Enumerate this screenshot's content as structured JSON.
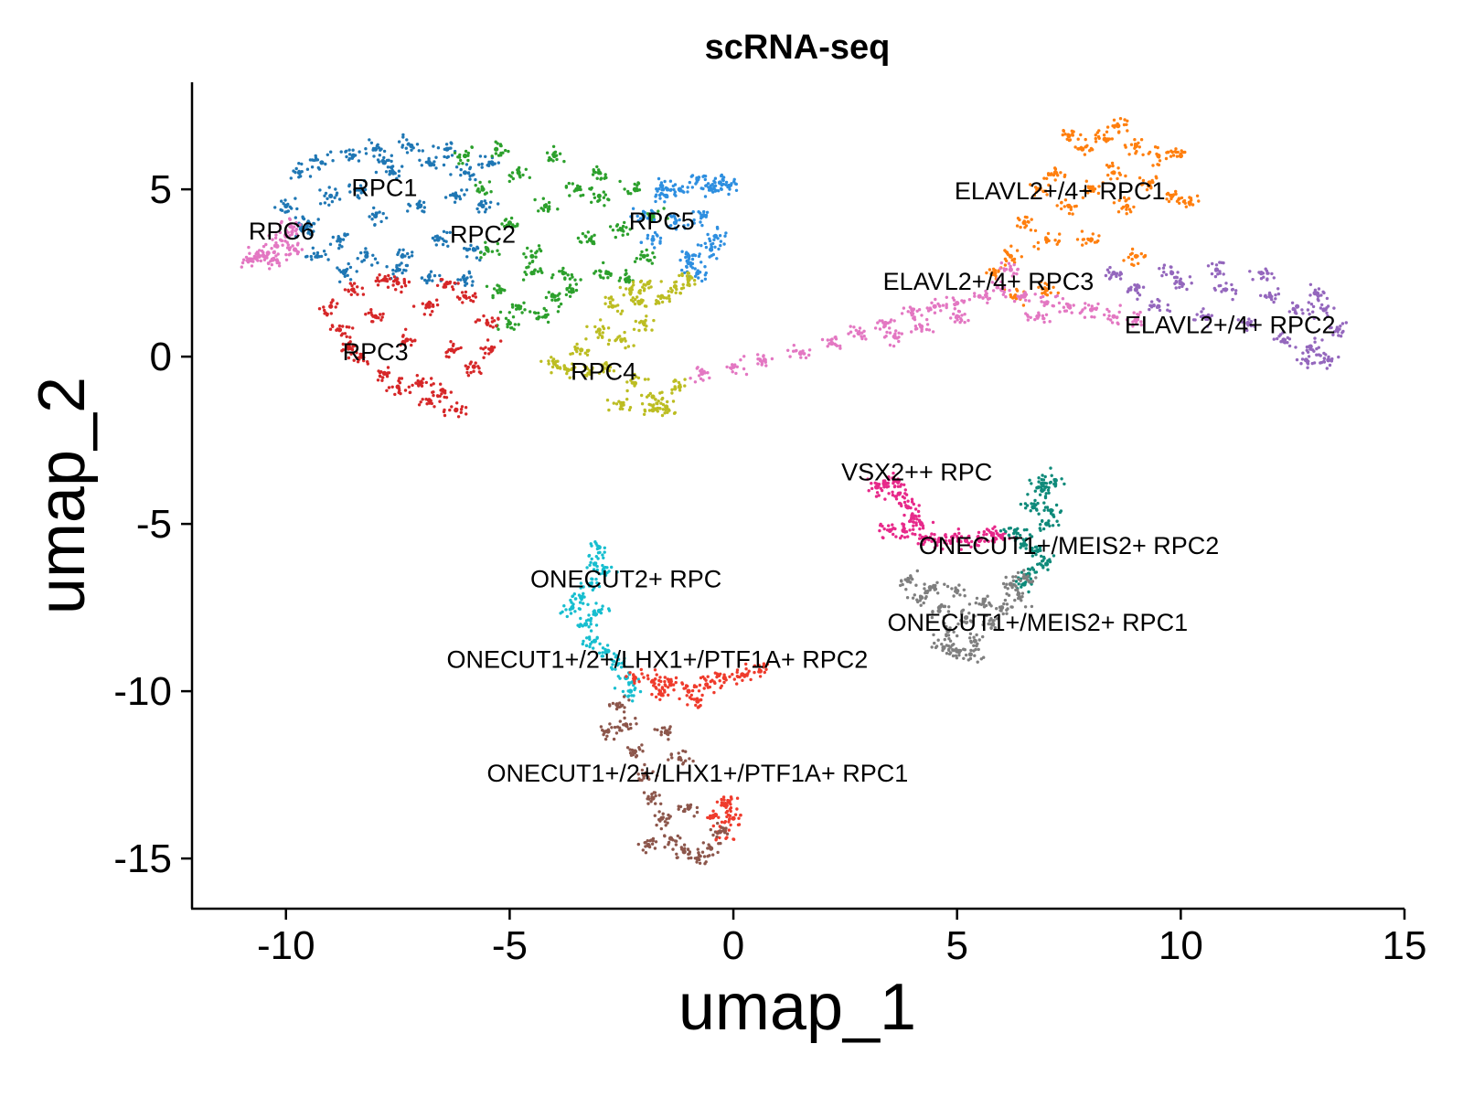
{
  "chart_data": {
    "type": "scatter",
    "title": "scRNA-seq",
    "xlabel": "umap_1",
    "ylabel": "umap_2",
    "xlim": [
      -12.1,
      15
    ],
    "ylim": [
      -16.5,
      8.2
    ],
    "xticks": [
      -10,
      -5,
      0,
      5,
      10,
      15
    ],
    "yticks": [
      -15,
      -10,
      -5,
      0,
      5
    ],
    "grid": false,
    "legend": "none",
    "series": [
      {
        "label": "RPC1",
        "color": "#1f77b4",
        "label_pos": [
          -7.8,
          4.8
        ],
        "points": [
          [
            -10.0,
            4.5
          ],
          [
            -9.7,
            5.5
          ],
          [
            -9.5,
            4.0
          ],
          [
            -9.2,
            5.8
          ],
          [
            -9.0,
            4.8
          ],
          [
            -8.8,
            3.5
          ],
          [
            -8.5,
            6.0
          ],
          [
            -8.3,
            5.0
          ],
          [
            -8.0,
            4.2
          ],
          [
            -8.0,
            6.2
          ],
          [
            -7.6,
            5.5
          ],
          [
            -7.4,
            3.0
          ],
          [
            -7.2,
            6.3
          ],
          [
            -7.0,
            4.5
          ],
          [
            -6.8,
            5.8
          ],
          [
            -6.6,
            3.5
          ],
          [
            -6.4,
            6.2
          ],
          [
            -6.2,
            4.8
          ],
          [
            -6.0,
            5.5
          ],
          [
            -5.8,
            3.2
          ],
          [
            -9.3,
            3.0
          ],
          [
            -8.7,
            2.5
          ],
          [
            -8.2,
            3.0
          ],
          [
            -7.5,
            2.6
          ],
          [
            -6.8,
            2.4
          ],
          [
            -6.0,
            2.3
          ],
          [
            -5.6,
            4.5
          ],
          [
            -5.4,
            5.8
          ],
          [
            -9.6,
            3.8
          ],
          [
            -7.8,
            5.8
          ]
        ]
      },
      {
        "label": "RPC2",
        "color": "#2ca02c",
        "label_pos": [
          -5.6,
          3.4
        ],
        "points": [
          [
            -6.0,
            6.0
          ],
          [
            -5.6,
            5.0
          ],
          [
            -5.3,
            6.2
          ],
          [
            -5.0,
            4.0
          ],
          [
            -4.8,
            5.5
          ],
          [
            -4.5,
            3.0
          ],
          [
            -4.2,
            4.5
          ],
          [
            -4.0,
            6.0
          ],
          [
            -3.8,
            2.5
          ],
          [
            -3.5,
            5.0
          ],
          [
            -3.2,
            3.5
          ],
          [
            -3.0,
            4.8
          ],
          [
            -2.8,
            2.5
          ],
          [
            -2.5,
            3.8
          ],
          [
            -2.2,
            5.0
          ],
          [
            -2.0,
            3.0
          ],
          [
            -1.8,
            4.2
          ],
          [
            -5.2,
            2.0
          ],
          [
            -4.8,
            1.5
          ],
          [
            -4.5,
            2.5
          ],
          [
            -4.0,
            1.8
          ],
          [
            -3.6,
            2.0
          ],
          [
            -5.5,
            3.2
          ],
          [
            -3.0,
            5.5
          ],
          [
            -2.4,
            2.3
          ],
          [
            -5.0,
            1.0
          ],
          [
            -4.2,
            1.2
          ]
        ]
      },
      {
        "label": "RPC5",
        "color": "#2e8fe0",
        "label_pos": [
          -1.6,
          3.8
        ],
        "points": [
          [
            -2.0,
            4.2
          ],
          [
            -1.8,
            3.5
          ],
          [
            -1.5,
            4.8
          ],
          [
            -1.3,
            4.0
          ],
          [
            -1.2,
            5.0
          ],
          [
            -1.0,
            3.0
          ],
          [
            -0.8,
            5.3
          ],
          [
            -0.7,
            4.2
          ],
          [
            -0.5,
            5.0
          ],
          [
            -0.3,
            5.2
          ],
          [
            -0.5,
            3.2
          ],
          [
            -0.8,
            2.5
          ],
          [
            -1.0,
            2.8
          ],
          [
            -0.4,
            3.6
          ],
          [
            -1.6,
            5.1
          ],
          [
            -0.1,
            5.1
          ]
        ]
      },
      {
        "label": "RPC6",
        "color": "#e377c2",
        "label_pos": [
          -10.1,
          3.5
        ],
        "points": [
          [
            -10.8,
            2.9
          ],
          [
            -10.6,
            3.0
          ],
          [
            -10.4,
            3.1
          ],
          [
            -10.2,
            3.3
          ],
          [
            -10.0,
            3.6
          ],
          [
            -9.9,
            3.9
          ],
          [
            -10.3,
            2.9
          ],
          [
            -9.8,
            3.2
          ]
        ]
      },
      {
        "label": "RPC3",
        "color": "#d62728",
        "label_pos": [
          -8.0,
          -0.1
        ],
        "points": [
          [
            -9.0,
            1.5
          ],
          [
            -8.8,
            0.8
          ],
          [
            -8.5,
            2.0
          ],
          [
            -8.3,
            0.0
          ],
          [
            -8.0,
            1.2
          ],
          [
            -7.8,
            -0.5
          ],
          [
            -7.5,
            2.2
          ],
          [
            -7.3,
            0.5
          ],
          [
            -7.0,
            -0.8
          ],
          [
            -6.8,
            1.5
          ],
          [
            -6.5,
            -1.0
          ],
          [
            -6.3,
            0.2
          ],
          [
            -6.0,
            1.8
          ],
          [
            -5.8,
            -0.3
          ],
          [
            -5.5,
            1.0
          ],
          [
            -6.2,
            -1.6
          ],
          [
            -6.8,
            -1.3
          ],
          [
            -7.5,
            -0.9
          ],
          [
            -8.6,
            0.3
          ],
          [
            -5.4,
            0.2
          ],
          [
            -6.4,
            2.2
          ],
          [
            -7.8,
            2.3
          ]
        ]
      },
      {
        "label": "RPC4",
        "color": "#bcbd22",
        "label_pos": [
          -2.9,
          -0.7
        ],
        "points": [
          [
            -4.0,
            -0.2
          ],
          [
            -3.7,
            -0.4
          ],
          [
            -3.4,
            0.2
          ],
          [
            -3.2,
            -0.5
          ],
          [
            -3.0,
            0.8
          ],
          [
            -2.8,
            -0.3
          ],
          [
            -2.7,
            1.5
          ],
          [
            -2.5,
            0.5
          ],
          [
            -2.3,
            2.0
          ],
          [
            -2.2,
            -0.8
          ],
          [
            -2.0,
            1.0
          ],
          [
            -1.9,
            2.2
          ],
          [
            -1.8,
            -1.2
          ],
          [
            -1.6,
            1.8
          ],
          [
            -1.5,
            -1.5
          ],
          [
            -1.3,
            2.1
          ],
          [
            -1.2,
            -0.9
          ],
          [
            -1.8,
            -1.6
          ],
          [
            -2.5,
            -1.4
          ],
          [
            -1.0,
            2.3
          ],
          [
            -2.1,
            1.6
          ]
        ]
      },
      {
        "label": "ELAVL2+/4+ RPC1",
        "color": "#ff7f0e",
        "label_pos": [
          7.3,
          4.7
        ],
        "points": [
          [
            5.8,
            2.5
          ],
          [
            6.2,
            3.0
          ],
          [
            6.5,
            4.0
          ],
          [
            6.8,
            5.0
          ],
          [
            7.0,
            3.5
          ],
          [
            7.2,
            5.5
          ],
          [
            7.5,
            4.5
          ],
          [
            7.8,
            6.2
          ],
          [
            8.0,
            5.0
          ],
          [
            8.3,
            6.5
          ],
          [
            8.5,
            5.5
          ],
          [
            8.8,
            4.5
          ],
          [
            9.0,
            6.3
          ],
          [
            9.3,
            5.2
          ],
          [
            9.5,
            6.0
          ],
          [
            9.8,
            4.8
          ],
          [
            10.0,
            6.0
          ],
          [
            10.2,
            4.6
          ],
          [
            6.3,
            1.8
          ],
          [
            7.0,
            2.0
          ],
          [
            8.0,
            3.5
          ],
          [
            9.0,
            3.0
          ],
          [
            7.5,
            6.6
          ],
          [
            8.6,
            6.9
          ]
        ]
      },
      {
        "label": "ELAVL2+/4+ RPC3",
        "color": "#e377c2",
        "label_pos": [
          5.7,
          2.0
        ],
        "points": [
          [
            -0.7,
            -0.5
          ],
          [
            0.0,
            -0.3
          ],
          [
            0.7,
            -0.1
          ],
          [
            1.5,
            0.1
          ],
          [
            2.2,
            0.4
          ],
          [
            2.8,
            0.7
          ],
          [
            3.4,
            1.0
          ],
          [
            4.0,
            1.4
          ],
          [
            4.5,
            1.5
          ],
          [
            5.0,
            1.6
          ],
          [
            5.5,
            1.8
          ],
          [
            6.0,
            2.0
          ],
          [
            6.5,
            1.8
          ],
          [
            7.0,
            1.6
          ],
          [
            7.5,
            1.5
          ],
          [
            8.0,
            1.4
          ],
          [
            8.5,
            1.2
          ],
          [
            9.0,
            1.1
          ],
          [
            6.2,
            2.6
          ],
          [
            5.0,
            1.2
          ],
          [
            4.2,
            0.9
          ],
          [
            6.8,
            1.2
          ],
          [
            3.6,
            0.6
          ]
        ]
      },
      {
        "label": "ELAVL2+/4+ RPC2",
        "color": "#9467bd",
        "label_pos": [
          11.1,
          0.7
        ],
        "points": [
          [
            8.5,
            2.5
          ],
          [
            9.0,
            2.0
          ],
          [
            9.5,
            1.5
          ],
          [
            10.0,
            2.2
          ],
          [
            10.5,
            1.2
          ],
          [
            11.0,
            2.0
          ],
          [
            11.5,
            1.0
          ],
          [
            12.0,
            1.8
          ],
          [
            12.3,
            0.5
          ],
          [
            12.6,
            1.5
          ],
          [
            12.9,
            0.3
          ],
          [
            13.2,
            1.4
          ],
          [
            13.5,
            0.8
          ],
          [
            13.3,
            -0.1
          ],
          [
            12.8,
            -0.1
          ],
          [
            11.8,
            2.5
          ],
          [
            10.8,
            2.6
          ],
          [
            9.8,
            2.5
          ],
          [
            13.0,
            1.9
          ]
        ]
      },
      {
        "label": "VSX2++ RPC",
        "color": "#e7298a",
        "label_pos": [
          4.1,
          -3.7
        ],
        "points": [
          [
            3.2,
            -3.9
          ],
          [
            3.4,
            -3.8
          ],
          [
            3.6,
            -3.7
          ],
          [
            3.7,
            -4.1
          ],
          [
            3.9,
            -4.5
          ],
          [
            4.0,
            -4.8
          ],
          [
            4.2,
            -5.0
          ],
          [
            3.8,
            -5.2
          ],
          [
            4.3,
            -5.4
          ],
          [
            4.6,
            -5.5
          ],
          [
            4.9,
            -5.4
          ],
          [
            5.2,
            -5.5
          ],
          [
            5.5,
            -5.5
          ],
          [
            5.8,
            -5.3
          ],
          [
            6.0,
            -5.4
          ],
          [
            3.5,
            -5.2
          ]
        ]
      },
      {
        "label": "ONECUT1+/MEIS2+ RPC2",
        "color": "#0f8a7a",
        "label_pos": [
          7.5,
          -5.9
        ],
        "points": [
          [
            6.3,
            -5.2
          ],
          [
            6.5,
            -5.6
          ],
          [
            6.7,
            -4.5
          ],
          [
            6.8,
            -5.8
          ],
          [
            6.9,
            -4.0
          ],
          [
            7.0,
            -5.0
          ],
          [
            7.0,
            -6.2
          ],
          [
            6.6,
            -6.5
          ],
          [
            6.9,
            -3.8
          ],
          [
            7.1,
            -4.6
          ],
          [
            7.2,
            -3.7
          ],
          [
            6.5,
            -6.8
          ]
        ]
      },
      {
        "label": "ONECUT1+/MEIS2+ RPC1",
        "color": "#7f7f7f",
        "label_pos": [
          6.8,
          -8.2
        ],
        "points": [
          [
            3.9,
            -6.7
          ],
          [
            4.2,
            -7.2
          ],
          [
            4.4,
            -6.9
          ],
          [
            4.6,
            -7.6
          ],
          [
            4.8,
            -8.2
          ],
          [
            5.0,
            -7.0
          ],
          [
            5.0,
            -8.8
          ],
          [
            5.2,
            -7.8
          ],
          [
            5.4,
            -8.5
          ],
          [
            5.6,
            -7.3
          ],
          [
            5.8,
            -8.0
          ],
          [
            6.0,
            -7.5
          ],
          [
            6.2,
            -6.8
          ],
          [
            6.4,
            -7.2
          ],
          [
            5.3,
            -8.9
          ],
          [
            4.7,
            -8.7
          ],
          [
            6.5,
            -6.6
          ]
        ]
      },
      {
        "label": "ONECUT2+ RPC",
        "color": "#17becf",
        "label_pos": [
          -2.4,
          -6.9
        ],
        "points": [
          [
            -3.0,
            -5.7
          ],
          [
            -3.1,
            -6.2
          ],
          [
            -3.2,
            -6.8
          ],
          [
            -3.4,
            -7.2
          ],
          [
            -3.6,
            -7.5
          ],
          [
            -3.3,
            -8.0
          ],
          [
            -3.1,
            -8.5
          ],
          [
            -2.8,
            -8.8
          ],
          [
            -2.6,
            -9.2
          ],
          [
            -2.4,
            -9.6
          ],
          [
            -2.3,
            -10.0
          ],
          [
            -3.0,
            -7.6
          ],
          [
            -2.9,
            -6.4
          ]
        ]
      },
      {
        "label": "ONECUT1+/2+/LHX1+/PTF1A+ RPC2",
        "color": "#ef3b2c",
        "label_pos": [
          -1.7,
          -9.3
        ],
        "points": [
          [
            -2.2,
            -9.6
          ],
          [
            -1.8,
            -9.7
          ],
          [
            -1.4,
            -9.8
          ],
          [
            -1.0,
            -10.0
          ],
          [
            -0.6,
            -9.8
          ],
          [
            -0.2,
            -9.6
          ],
          [
            0.2,
            -9.5
          ],
          [
            0.6,
            -9.4
          ],
          [
            -1.6,
            -10.1
          ],
          [
            -0.8,
            -10.3
          ],
          [
            -0.2,
            -13.4
          ],
          [
            -0.4,
            -13.7
          ],
          [
            -0.3,
            -14.2
          ],
          [
            -0.1,
            -13.3
          ],
          [
            0.0,
            -13.8
          ]
        ]
      },
      {
        "label": "ONECUT1+/2+/LHX1+/PTF1A+ RPC1",
        "color": "#8c564b",
        "label_pos": [
          -0.8,
          -12.7
        ],
        "points": [
          [
            -2.6,
            -10.4
          ],
          [
            -2.4,
            -11.0
          ],
          [
            -2.2,
            -11.8
          ],
          [
            -2.0,
            -12.5
          ],
          [
            -1.8,
            -13.2
          ],
          [
            -1.6,
            -13.8
          ],
          [
            -1.4,
            -14.4
          ],
          [
            -1.1,
            -14.8
          ],
          [
            -0.8,
            -15.0
          ],
          [
            -0.5,
            -14.7
          ],
          [
            -1.2,
            -12.0
          ],
          [
            -1.5,
            -11.2
          ],
          [
            -2.8,
            -11.2
          ],
          [
            -1.9,
            -14.6
          ],
          [
            -0.3,
            -14.2
          ],
          [
            -1.0,
            -13.5
          ]
        ]
      }
    ]
  }
}
